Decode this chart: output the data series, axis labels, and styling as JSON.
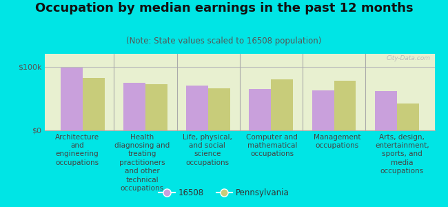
{
  "title": "Occupation by median earnings in the past 12 months",
  "subtitle": "(Note: State values scaled to 16508 population)",
  "categories": [
    "Architecture\nand\nengineering\noccupations",
    "Health\ndiagnosing and\ntreating\npractitioners\nand other\ntechnical\noccupations",
    "Life, physical,\nand social\nscience\noccupations",
    "Computer and\nmathematical\noccupations",
    "Management\noccupations",
    "Arts, design,\nentertainment,\nsports, and\nmedia\noccupations"
  ],
  "values_16508": [
    98000,
    75000,
    70000,
    65000,
    63000,
    62000
  ],
  "values_pa": [
    82000,
    72000,
    66000,
    80000,
    78000,
    42000
  ],
  "color_16508": "#c9a0dc",
  "color_pa": "#c8cc7a",
  "bar_width": 0.35,
  "ylim": [
    0,
    120000
  ],
  "ytick_labels": [
    "$0",
    "$100k"
  ],
  "ytick_vals": [
    0,
    100000
  ],
  "legend_label_16508": "16508",
  "legend_label_pa": "Pennsylvania",
  "background_color": "#e8f0d0",
  "plot_bg_top": "#f5f8e8",
  "outer_background": "#00e5e5",
  "watermark": "City-Data.com",
  "title_fontsize": 13,
  "subtitle_fontsize": 8.5,
  "axis_label_fontsize": 7.5,
  "legend_fontsize": 8.5
}
